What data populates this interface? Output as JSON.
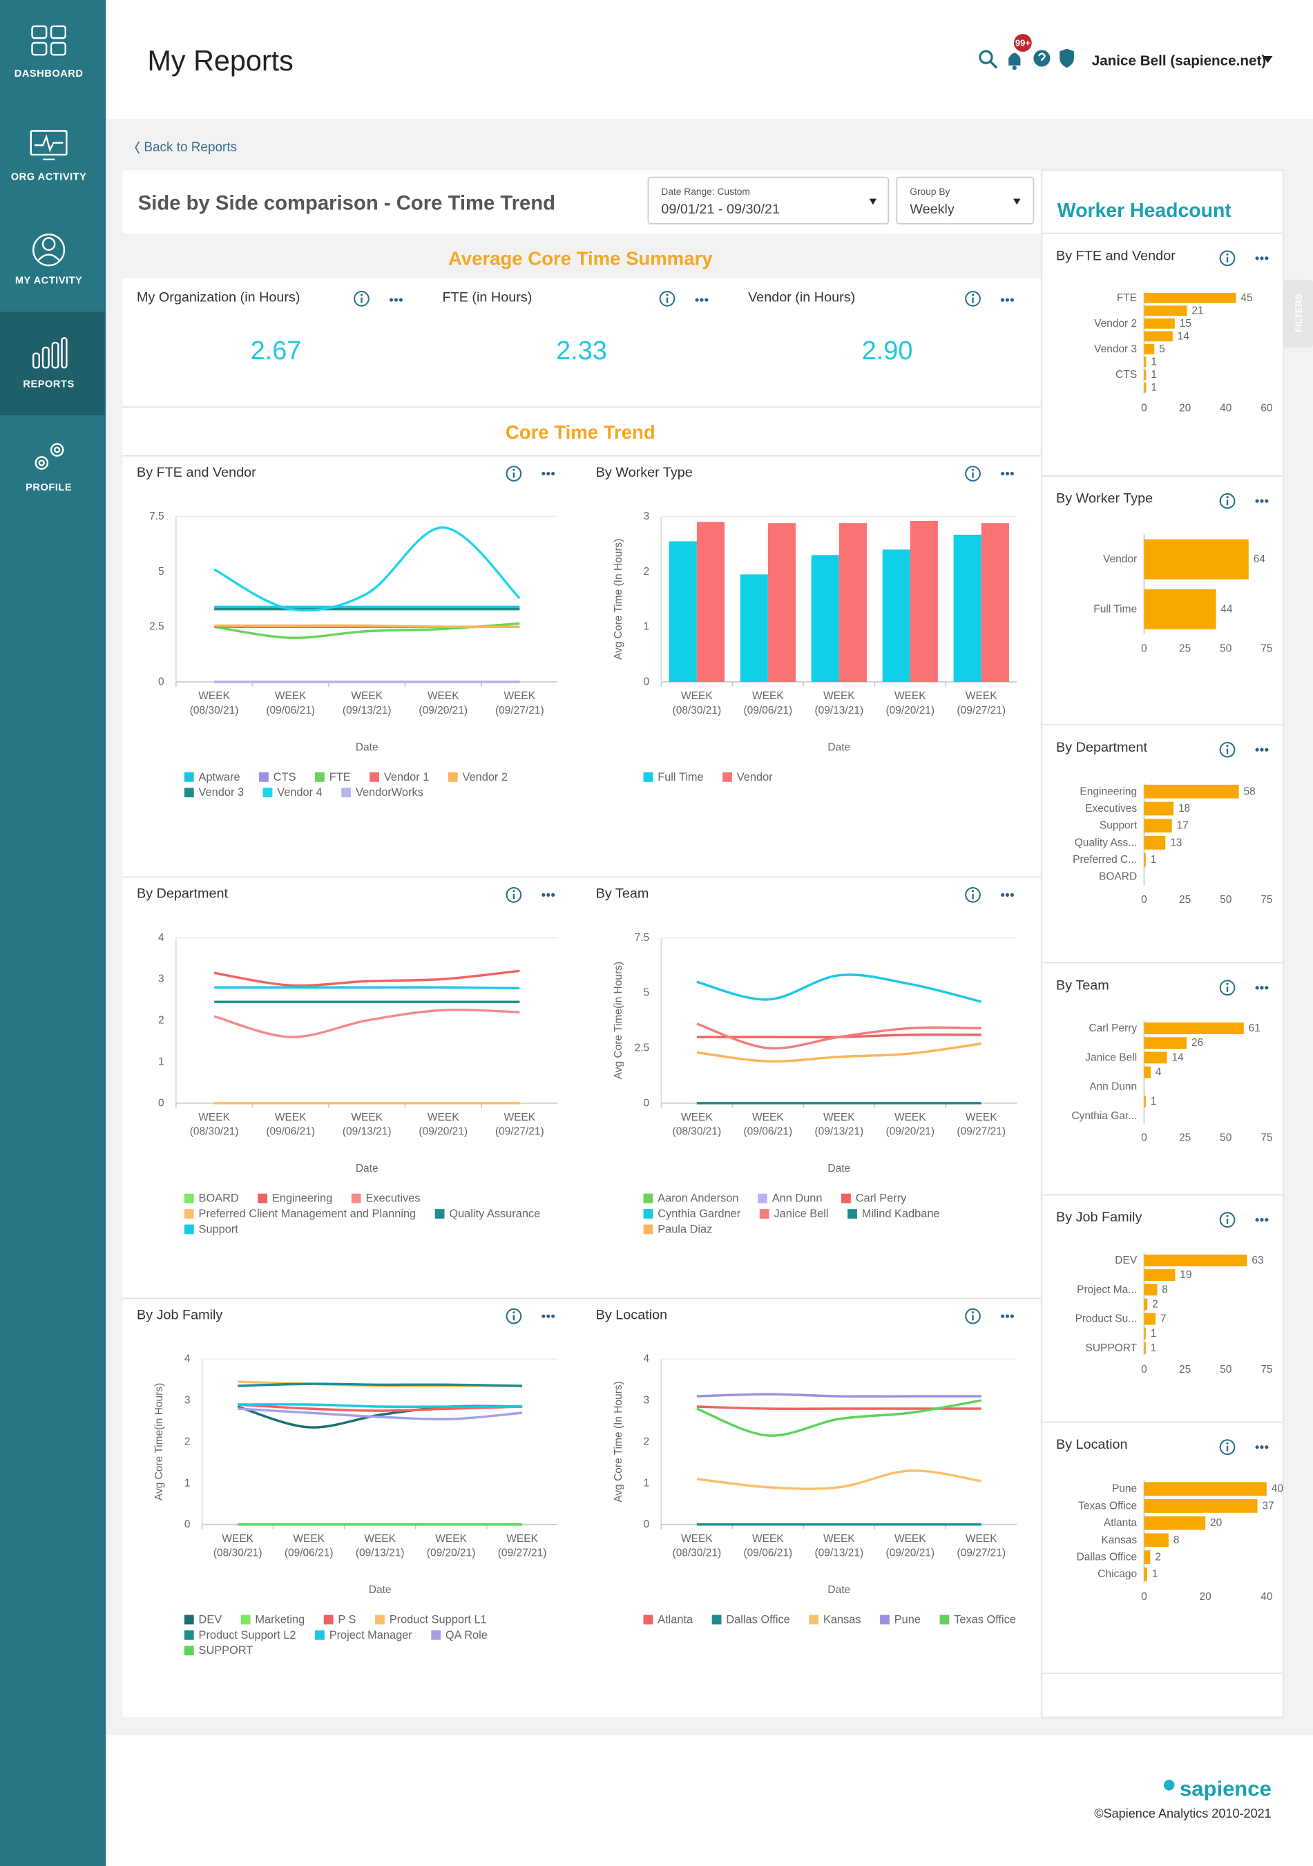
{
  "sidebar": {
    "items": [
      "DASHBOARD",
      "ORG ACTIVITY",
      "MY ACTIVITY",
      "REPORTS",
      "PROFILE"
    ],
    "active": 3
  },
  "header": {
    "title": "My Reports",
    "notifications": "99+",
    "user": "Janice Bell (sapience.net)"
  },
  "back_link": "Back to Reports",
  "report": {
    "title": "Side by Side comparison - Core Time Trend",
    "date_range": {
      "label": "Date Range: Custom",
      "value": "09/01/21 - 09/30/21"
    },
    "group_by": {
      "label": "Group By",
      "value": "Weekly"
    }
  },
  "summary": {
    "title": "Average Core Time Summary",
    "kpis": [
      {
        "label": "My Organization (in Hours)",
        "value": "2.67"
      },
      {
        "label": "FTE (in Hours)",
        "value": "2.33"
      },
      {
        "label": "Vendor (in Hours)",
        "value": "2.90"
      }
    ]
  },
  "trend": {
    "title": "Core Time Trend",
    "charts": [
      {
        "type": "line",
        "title": "By FTE and Vendor",
        "x_label": "Date",
        "categories": [
          [
            "WEEK",
            "(08/30/21)"
          ],
          [
            "WEEK",
            "(09/06/21)"
          ],
          [
            "WEEK",
            "(09/13/21)"
          ],
          [
            "WEEK",
            "(09/20/21)"
          ],
          [
            "WEEK",
            "(09/27/21)"
          ]
        ],
        "ylim": [
          0,
          7.5
        ],
        "yticks": [
          0,
          2.5,
          5,
          7.5
        ],
        "series": [
          {
            "name": "Aptware",
            "color": "#19c3e6",
            "values": [
              3.4,
              3.4,
              3.4,
              3.4,
              3.4
            ]
          },
          {
            "name": "CTS",
            "color": "#9b8fe0",
            "values": [
              0,
              0,
              0,
              0,
              0
            ]
          },
          {
            "name": "FTE",
            "color": "#6bd35a",
            "values": [
              2.5,
              2.0,
              2.3,
              2.4,
              2.65
            ]
          },
          {
            "name": "Vendor 1",
            "color": "#f26b6b",
            "values": [
              2.5,
              2.5,
              2.5,
              2.5,
              2.5
            ]
          },
          {
            "name": "Vendor 2",
            "color": "#f9b55a",
            "values": [
              2.55,
              2.55,
              2.55,
              2.5,
              2.5
            ]
          },
          {
            "name": "Vendor 3",
            "color": "#1e8c8c",
            "values": [
              3.3,
              3.3,
              3.3,
              3.3,
              3.3
            ]
          },
          {
            "name": "Vendor 4",
            "color": "#22d3ee",
            "values": [
              5.1,
              3.3,
              4.0,
              7.0,
              3.8
            ]
          },
          {
            "name": "VendorWorks",
            "color": "#b6b4f2",
            "values": [
              0,
              0,
              0,
              0,
              0
            ]
          }
        ]
      },
      {
        "type": "bar",
        "title": "By Worker Type",
        "x_label": "Date",
        "y_label": "Avg Core Time (In Hours)",
        "categories": [
          [
            "WEEK",
            "(08/30/21)"
          ],
          [
            "WEEK",
            "(09/06/21)"
          ],
          [
            "WEEK",
            "(09/13/21)"
          ],
          [
            "WEEK",
            "(09/20/21)"
          ],
          [
            "WEEK",
            "(09/27/21)"
          ]
        ],
        "ylim": [
          0,
          3
        ],
        "yticks": [
          0,
          1,
          2,
          3
        ],
        "series": [
          {
            "name": "Full Time",
            "color": "#10cfe6",
            "values": [
              2.55,
              1.95,
              2.3,
              2.4,
              2.67
            ]
          },
          {
            "name": "Vendor",
            "color": "#fa7272",
            "values": [
              2.9,
              2.88,
              2.88,
              2.92,
              2.88
            ]
          }
        ]
      },
      {
        "type": "line",
        "title": "By Department",
        "x_label": "Date",
        "categories": [
          [
            "WEEK",
            "(08/30/21)"
          ],
          [
            "WEEK",
            "(09/06/21)"
          ],
          [
            "WEEK",
            "(09/13/21)"
          ],
          [
            "WEEK",
            "(09/20/21)"
          ],
          [
            "WEEK",
            "(09/27/21)"
          ]
        ],
        "ylim": [
          0,
          4
        ],
        "yticks": [
          0,
          1,
          2,
          3,
          4
        ],
        "series": [
          {
            "name": "BOARD",
            "color": "#7ee860",
            "values": [
              0,
              0,
              0,
              0,
              0
            ]
          },
          {
            "name": "Engineering",
            "color": "#f06262",
            "values": [
              3.15,
              2.85,
              2.95,
              3.0,
              3.2
            ]
          },
          {
            "name": "Executives",
            "color": "#f58a8a",
            "values": [
              2.1,
              1.6,
              2.0,
              2.25,
              2.2
            ]
          },
          {
            "name": "Preferred Client Management and Planning",
            "color": "#f9c06a",
            "values": [
              0,
              0,
              0,
              0,
              0
            ]
          },
          {
            "name": "Quality Assurance",
            "color": "#1e8c8c",
            "values": [
              2.45,
              2.45,
              2.45,
              2.45,
              2.45
            ]
          },
          {
            "name": "Support",
            "color": "#19c8e6",
            "values": [
              2.8,
              2.8,
              2.8,
              2.8,
              2.78
            ]
          }
        ]
      },
      {
        "type": "line",
        "title": "By Team",
        "x_label": "Date",
        "y_label": "Avg Core Time(in Hours)",
        "categories": [
          [
            "WEEK",
            "(08/30/21)"
          ],
          [
            "WEEK",
            "(09/06/21)"
          ],
          [
            "WEEK",
            "(09/13/21)"
          ],
          [
            "WEEK",
            "(09/20/21)"
          ],
          [
            "WEEK",
            "(09/27/21)"
          ]
        ],
        "ylim": [
          0,
          7.5
        ],
        "yticks": [
          0,
          2.5,
          5,
          7.5
        ],
        "series": [
          {
            "name": "Aaron Anderson",
            "color": "#6bd35a",
            "values": [
              0,
              0,
              0,
              0,
              0
            ]
          },
          {
            "name": "Ann Dunn",
            "color": "#b6b4f2",
            "values": [
              0,
              0,
              0,
              0,
              0
            ]
          },
          {
            "name": "Carl Perry",
            "color": "#f06262",
            "values": [
              3.0,
              3.0,
              3.0,
              3.1,
              3.1
            ]
          },
          {
            "name": "Cynthia Gardner",
            "color": "#19c8e6",
            "values": [
              5.5,
              4.7,
              5.8,
              5.4,
              4.6
            ]
          },
          {
            "name": "Janice Bell",
            "color": "#f47c7c",
            "values": [
              3.6,
              2.5,
              3.0,
              3.4,
              3.4
            ]
          },
          {
            "name": "Milind Kadbane",
            "color": "#1e8c8c",
            "values": [
              0,
              0,
              0,
              0,
              0
            ]
          },
          {
            "name": "Paula Diaz",
            "color": "#f9b55a",
            "values": [
              2.3,
              1.9,
              2.1,
              2.25,
              2.7
            ]
          }
        ]
      },
      {
        "type": "line",
        "title": "By Job Family",
        "x_label": "Date",
        "y_label": "Avg Core Time(in Hours)",
        "categories": [
          [
            "WEEK",
            "(08/30/21)"
          ],
          [
            "WEEK",
            "(09/06/21)"
          ],
          [
            "WEEK",
            "(09/13/21)"
          ],
          [
            "WEEK",
            "(09/20/21)"
          ],
          [
            "WEEK",
            "(09/27/21)"
          ]
        ],
        "ylim": [
          0,
          4
        ],
        "yticks": [
          0,
          1,
          2,
          3,
          4
        ],
        "series": [
          {
            "name": "DEV",
            "color": "#1a6f73",
            "values": [
              2.85,
              2.35,
              2.65,
              2.85,
              2.85
            ]
          },
          {
            "name": "Marketing",
            "color": "#7ee860",
            "values": [
              0,
              0,
              0,
              0,
              0
            ]
          },
          {
            "name": "P S",
            "color": "#f06262",
            "values": [
              2.9,
              2.8,
              2.75,
              2.8,
              2.85
            ]
          },
          {
            "name": "Product Support L1",
            "color": "#f9c06a",
            "values": [
              3.45,
              3.4,
              3.35,
              3.35,
              3.35
            ]
          },
          {
            "name": "Product Support L2",
            "color": "#1e8c8c",
            "values": [
              3.35,
              3.4,
              3.38,
              3.38,
              3.35
            ]
          },
          {
            "name": "Project Manager",
            "color": "#19c8e6",
            "values": [
              2.9,
              2.9,
              2.85,
              2.85,
              2.85
            ]
          },
          {
            "name": "QA Role",
            "color": "#a3a0e8",
            "values": [
              2.8,
              2.7,
              2.6,
              2.55,
              2.7
            ]
          },
          {
            "name": "SUPPORT",
            "color": "#5cd45a",
            "values": [
              0,
              0,
              0,
              0,
              0
            ]
          }
        ]
      },
      {
        "type": "line",
        "title": "By Location",
        "x_label": "Date",
        "y_label": "Avg Core Time (In Hours)",
        "categories": [
          [
            "WEEK",
            "(08/30/21)"
          ],
          [
            "WEEK",
            "(09/06/21)"
          ],
          [
            "WEEK",
            "(09/13/21)"
          ],
          [
            "WEEK",
            "(09/20/21)"
          ],
          [
            "WEEK",
            "(09/27/21)"
          ]
        ],
        "ylim": [
          0,
          4
        ],
        "yticks": [
          0,
          1,
          2,
          3,
          4
        ],
        "series": [
          {
            "name": "Atlanta",
            "color": "#f06262",
            "values": [
              2.85,
              2.8,
              2.8,
              2.8,
              2.8
            ]
          },
          {
            "name": "Dallas Office",
            "color": "#1e8c8c",
            "values": [
              0,
              0,
              0,
              0,
              0
            ]
          },
          {
            "name": "Kansas",
            "color": "#f9c06a",
            "values": [
              1.1,
              0.9,
              0.9,
              1.3,
              1.05
            ]
          },
          {
            "name": "Pune",
            "color": "#9b8fe0",
            "values": [
              3.1,
              3.15,
              3.1,
              3.1,
              3.1
            ]
          },
          {
            "name": "Texas Office",
            "color": "#5cd45a",
            "values": [
              2.8,
              2.15,
              2.55,
              2.7,
              3.0
            ]
          }
        ]
      }
    ]
  },
  "headcount": {
    "title": "Worker Headcount",
    "filters": "FILTERS",
    "charts": [
      {
        "type": "hbar",
        "title": "By FTE and Vendor",
        "color": "#f9a800",
        "categories": [
          "FTE",
          null,
          "Vendor 2",
          null,
          "Vendor 3",
          null,
          "CTS",
          null
        ],
        "values": [
          45,
          21,
          15,
          14,
          5,
          1,
          1,
          1
        ],
        "xlim": [
          0,
          60
        ],
        "xticks": [
          0,
          20,
          40,
          60
        ]
      },
      {
        "type": "hbar",
        "title": "By Worker Type",
        "color": "#f9a800",
        "categories": [
          "Vendor",
          "Full Time"
        ],
        "values": [
          64,
          44
        ],
        "xlim": [
          0,
          75
        ],
        "xticks": [
          0,
          25,
          50,
          75
        ]
      },
      {
        "type": "hbar",
        "title": "By Department",
        "color": "#f9a800",
        "categories": [
          "Engineering",
          "Executives",
          "Support",
          "Quality Ass...",
          "Preferred C...",
          "BOARD"
        ],
        "values": [
          58,
          18,
          17,
          13,
          1,
          0
        ],
        "xlim": [
          0,
          75
        ],
        "xticks": [
          0,
          25,
          50,
          75
        ]
      },
      {
        "type": "hbar",
        "title": "By Team",
        "color": "#f9a800",
        "categories": [
          "Carl Perry",
          null,
          "Janice Bell",
          null,
          "Ann Dunn",
          null,
          "Cynthia Gar..."
        ],
        "values": [
          61,
          26,
          14,
          4,
          0,
          1,
          0
        ],
        "xlim": [
          0,
          75
        ],
        "xticks": [
          0,
          25,
          50,
          75
        ]
      },
      {
        "type": "hbar",
        "title": "By Job Family",
        "color": "#f9a800",
        "categories": [
          "DEV",
          null,
          "Project Ma...",
          null,
          "Product Su...",
          null,
          "SUPPORT"
        ],
        "values": [
          63,
          19,
          8,
          2,
          7,
          1,
          1
        ],
        "xlim": [
          0,
          75
        ],
        "xticks": [
          0,
          25,
          50,
          75
        ]
      },
      {
        "type": "hbar",
        "title": "By Location",
        "color": "#f9a800",
        "categories": [
          "Pune",
          "Texas Office",
          "Atlanta",
          "Kansas",
          "Dallas Office",
          "Chicago"
        ],
        "values": [
          40,
          37,
          20,
          8,
          2,
          1
        ],
        "xlim": [
          0,
          40
        ],
        "xticks": [
          0,
          20,
          40
        ]
      }
    ]
  },
  "footer": {
    "brand": "sapience",
    "copyright": "©Sapience Analytics 2010-2021"
  }
}
